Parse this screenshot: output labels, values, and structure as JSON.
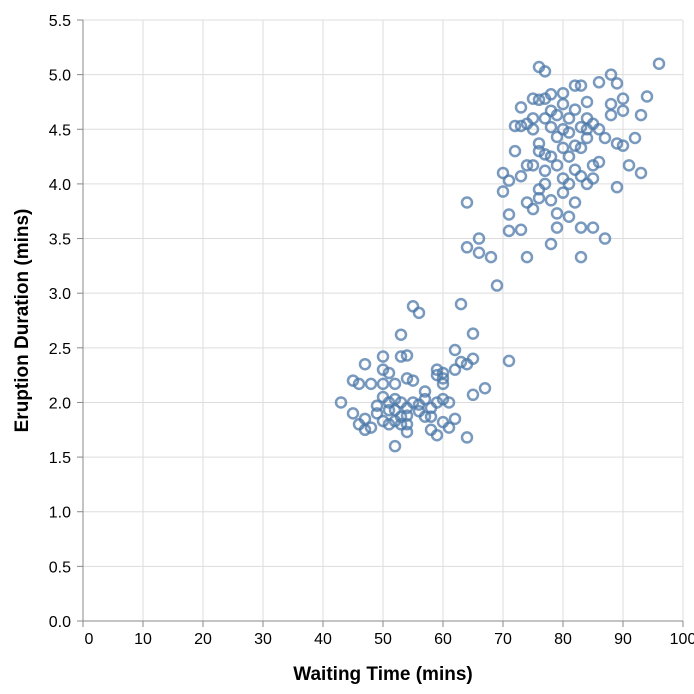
{
  "chart_data": {
    "type": "scatter",
    "xlabel": "Waiting Time (mins)",
    "ylabel": "Eruption Duration (mins)",
    "xlim": [
      0,
      100
    ],
    "ylim": [
      0,
      5.5
    ],
    "xticks": [
      0,
      10,
      20,
      30,
      40,
      50,
      60,
      70,
      80,
      90,
      100
    ],
    "xtick_labels": [
      "0",
      "10",
      "20",
      "30",
      "40",
      "50",
      "60",
      "70",
      "80",
      "90",
      "100"
    ],
    "yticks": [
      0,
      0.5,
      1,
      1.5,
      2,
      2.5,
      3,
      3.5,
      4,
      4.5,
      5,
      5.5
    ],
    "ytick_labels": [
      "0.0",
      "0.5",
      "1.0",
      "1.5",
      "2.0",
      "2.5",
      "3.0",
      "3.5",
      "4.0",
      "4.5",
      "5.0",
      "5.5"
    ],
    "grid": true,
    "marker": "open-circle",
    "color": "#4c78a8",
    "points": [
      [
        43,
        2.0
      ],
      [
        45,
        2.2
      ],
      [
        45,
        1.9
      ],
      [
        46,
        1.8
      ],
      [
        46,
        2.17
      ],
      [
        47,
        1.75
      ],
      [
        47,
        1.85
      ],
      [
        47,
        2.35
      ],
      [
        48,
        1.77
      ],
      [
        48,
        2.17
      ],
      [
        49,
        1.97
      ],
      [
        49,
        1.9
      ],
      [
        50,
        1.83
      ],
      [
        50,
        2.3
      ],
      [
        50,
        2.42
      ],
      [
        50,
        2.05
      ],
      [
        50,
        2.17
      ],
      [
        51,
        1.8
      ],
      [
        51,
        1.93
      ],
      [
        51,
        2.0
      ],
      [
        51,
        2.27
      ],
      [
        52,
        1.6
      ],
      [
        52,
        1.83
      ],
      [
        52,
        2.17
      ],
      [
        52,
        1.93
      ],
      [
        52,
        2.03
      ],
      [
        53,
        1.8
      ],
      [
        53,
        2.62
      ],
      [
        53,
        2.42
      ],
      [
        53,
        2.0
      ],
      [
        53,
        1.87
      ],
      [
        54,
        1.73
      ],
      [
        54,
        1.8
      ],
      [
        54,
        1.95
      ],
      [
        54,
        2.22
      ],
      [
        54,
        2.43
      ],
      [
        54,
        1.88
      ],
      [
        55,
        2.88
      ],
      [
        55,
        2.0
      ],
      [
        55,
        2.2
      ],
      [
        56,
        2.82
      ],
      [
        56,
        1.98
      ],
      [
        56,
        1.92
      ],
      [
        57,
        2.1
      ],
      [
        57,
        1.87
      ],
      [
        57,
        2.03
      ],
      [
        58,
        1.75
      ],
      [
        58,
        1.95
      ],
      [
        58,
        1.87
      ],
      [
        59,
        1.7
      ],
      [
        59,
        2.0
      ],
      [
        59,
        2.25
      ],
      [
        59,
        2.3
      ],
      [
        60,
        2.22
      ],
      [
        60,
        1.82
      ],
      [
        60,
        2.03
      ],
      [
        60,
        2.27
      ],
      [
        60,
        2.17
      ],
      [
        61,
        2.0
      ],
      [
        61,
        1.77
      ],
      [
        62,
        2.48
      ],
      [
        62,
        1.85
      ],
      [
        62,
        2.3
      ],
      [
        63,
        2.9
      ],
      [
        63,
        2.37
      ],
      [
        64,
        1.68
      ],
      [
        64,
        2.35
      ],
      [
        65,
        2.07
      ],
      [
        65,
        2.63
      ],
      [
        65,
        2.4
      ],
      [
        67,
        2.13
      ],
      [
        71,
        2.38
      ],
      [
        64,
        3.83
      ],
      [
        64,
        3.42
      ],
      [
        66,
        3.37
      ],
      [
        66,
        3.5
      ],
      [
        68,
        3.33
      ],
      [
        69,
        3.07
      ],
      [
        70,
        4.1
      ],
      [
        70,
        3.93
      ],
      [
        71,
        4.03
      ],
      [
        71,
        3.72
      ],
      [
        71,
        3.57
      ],
      [
        72,
        4.3
      ],
      [
        73,
        4.53
      ],
      [
        73,
        3.58
      ],
      [
        73,
        4.7
      ],
      [
        73,
        4.07
      ],
      [
        74,
        3.83
      ],
      [
        74,
        4.17
      ],
      [
        74,
        3.33
      ],
      [
        74,
        4.55
      ],
      [
        75,
        4.78
      ],
      [
        75,
        3.77
      ],
      [
        75,
        4.17
      ],
      [
        75,
        4.5
      ],
      [
        75,
        4.6
      ],
      [
        76,
        3.95
      ],
      [
        76,
        4.3
      ],
      [
        76,
        5.07
      ],
      [
        76,
        4.37
      ],
      [
        76,
        3.87
      ],
      [
        77,
        4.6
      ],
      [
        77,
        4.0
      ],
      [
        77,
        4.27
      ],
      [
        77,
        5.03
      ],
      [
        77,
        4.12
      ],
      [
        77,
        4.78
      ],
      [
        78,
        3.45
      ],
      [
        78,
        4.25
      ],
      [
        78,
        3.85
      ],
      [
        78,
        4.52
      ],
      [
        78,
        4.82
      ],
      [
        78,
        4.67
      ],
      [
        79,
        3.6
      ],
      [
        79,
        4.43
      ],
      [
        79,
        4.17
      ],
      [
        79,
        3.73
      ],
      [
        79,
        4.63
      ],
      [
        80,
        4.33
      ],
      [
        80,
        4.05
      ],
      [
        80,
        4.5
      ],
      [
        80,
        4.83
      ],
      [
        80,
        3.92
      ],
      [
        81,
        3.7
      ],
      [
        81,
        4.25
      ],
      [
        81,
        4.47
      ],
      [
        81,
        4.6
      ],
      [
        81,
        4.0
      ],
      [
        82,
        4.9
      ],
      [
        82,
        4.35
      ],
      [
        82,
        4.13
      ],
      [
        82,
        3.83
      ],
      [
        82,
        4.68
      ],
      [
        83,
        3.33
      ],
      [
        83,
        4.33
      ],
      [
        83,
        4.9
      ],
      [
        83,
        4.52
      ],
      [
        83,
        3.6
      ],
      [
        83,
        4.07
      ],
      [
        84,
        4.42
      ],
      [
        84,
        4.0
      ],
      [
        84,
        4.75
      ],
      [
        84,
        4.6
      ],
      [
        85,
        3.6
      ],
      [
        85,
        4.17
      ],
      [
        85,
        4.55
      ],
      [
        85,
        4.05
      ],
      [
        86,
        4.93
      ],
      [
        86,
        4.2
      ],
      [
        86,
        4.5
      ],
      [
        87,
        3.5
      ],
      [
        87,
        4.42
      ],
      [
        88,
        4.63
      ],
      [
        88,
        5.0
      ],
      [
        88,
        4.73
      ],
      [
        89,
        4.37
      ],
      [
        89,
        3.97
      ],
      [
        89,
        4.92
      ],
      [
        90,
        4.67
      ],
      [
        90,
        4.78
      ],
      [
        90,
        4.35
      ],
      [
        91,
        4.17
      ],
      [
        92,
        4.42
      ],
      [
        93,
        4.63
      ],
      [
        93,
        4.1
      ],
      [
        94,
        4.8
      ],
      [
        96,
        5.1
      ],
      [
        72,
        4.53
      ],
      [
        76,
        4.77
      ],
      [
        80,
        4.73
      ],
      [
        84,
        4.5
      ]
    ]
  }
}
